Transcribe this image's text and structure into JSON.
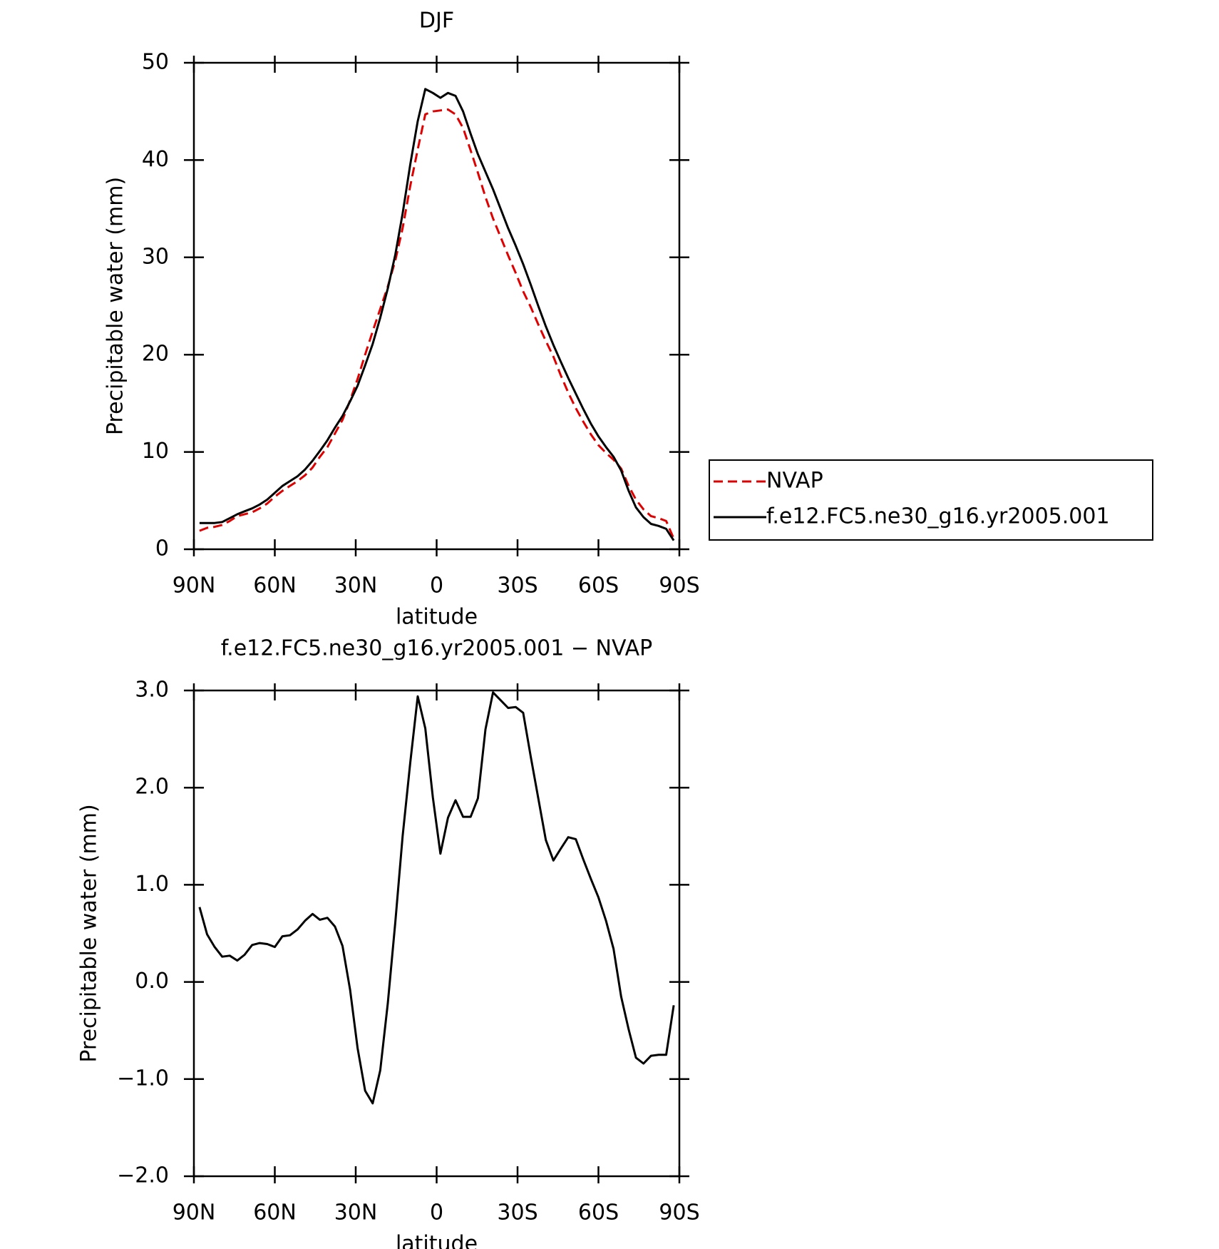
{
  "chart_data": [
    {
      "type": "line",
      "title": "DJF",
      "xlabel": "latitude",
      "ylabel": "Precipitable water (mm)",
      "x": [
        87.9,
        85.1,
        82.3,
        79.5,
        76.7,
        73.9,
        71.2,
        68.4,
        65.6,
        62.8,
        60.0,
        57.2,
        54.4,
        51.6,
        48.8,
        46.0,
        43.3,
        40.5,
        37.7,
        34.9,
        32.1,
        29.3,
        26.5,
        23.7,
        20.9,
        18.1,
        15.3,
        12.6,
        9.8,
        7.0,
        4.2,
        1.4,
        -1.4,
        -4.2,
        -7.0,
        -9.8,
        -12.6,
        -15.3,
        -18.1,
        -20.9,
        -23.7,
        -26.5,
        -29.3,
        -32.1,
        -34.9,
        -37.7,
        -40.5,
        -43.3,
        -46.0,
        -48.8,
        -51.6,
        -54.4,
        -57.2,
        -60.0,
        -62.8,
        -65.6,
        -68.4,
        -71.2,
        -73.9,
        -76.7,
        -79.5,
        -82.3,
        -85.1,
        -87.9
      ],
      "xlim": [
        90,
        -90
      ],
      "xticks": [
        {
          "value": 90,
          "label": "90N"
        },
        {
          "value": 60,
          "label": "60N"
        },
        {
          "value": 30,
          "label": "30N"
        },
        0,
        {
          "value": -30,
          "label": "30S"
        },
        {
          "value": -60,
          "label": "60S"
        },
        {
          "value": -90,
          "label": "90S"
        }
      ],
      "ylim": [
        0,
        50
      ],
      "yticks": [
        0,
        10,
        20,
        30,
        40,
        50
      ],
      "legend": "right",
      "series": [
        {
          "name": "NVAP",
          "color": "#e00000",
          "dash": true,
          "values": [
            1.9,
            2.2,
            2.3,
            2.5,
            2.9,
            3.4,
            3.6,
            3.8,
            4.2,
            4.7,
            5.4,
            6.0,
            6.5,
            7.0,
            7.6,
            8.4,
            9.5,
            10.5,
            11.9,
            13.3,
            15.3,
            17.5,
            20.0,
            22.4,
            24.7,
            27.0,
            29.7,
            33.0,
            37.3,
            41.1,
            44.7,
            45.0,
            45.1,
            45.2,
            44.7,
            43.3,
            41.0,
            38.7,
            36.2,
            34.0,
            32.1,
            30.2,
            28.4,
            26.5,
            24.9,
            23.1,
            21.4,
            19.8,
            17.9,
            16.1,
            14.5,
            13.1,
            11.8,
            10.7,
            9.9,
            9.2,
            8.3,
            6.5,
            5.1,
            4.1,
            3.4,
            3.2,
            2.9,
            1.1
          ]
        },
        {
          "name": "f.e12.FC5.ne30_g16.yr2005.001",
          "color": "#000000",
          "dash": false,
          "values": [
            2.7,
            2.7,
            2.7,
            2.8,
            3.2,
            3.6,
            3.9,
            4.2,
            4.6,
            5.1,
            5.8,
            6.5,
            7.0,
            7.5,
            8.2,
            9.1,
            10.1,
            11.2,
            12.5,
            13.7,
            15.2,
            16.8,
            18.9,
            21.1,
            23.8,
            26.8,
            30.3,
            34.5,
            39.5,
            44.0,
            47.3,
            46.9,
            46.4,
            46.9,
            46.6,
            45.0,
            42.7,
            40.6,
            38.8,
            37.0,
            35.0,
            33.0,
            31.2,
            29.3,
            27.2,
            25.0,
            22.9,
            21.0,
            19.3,
            17.6,
            16.0,
            14.4,
            12.9,
            11.6,
            10.5,
            9.5,
            8.1,
            6.0,
            4.3,
            3.3,
            2.6,
            2.4,
            2.1,
            0.9
          ]
        }
      ]
    },
    {
      "type": "line",
      "title": "f.e12.FC5.ne30_g16.yr2005.001 − NVAP",
      "xlabel": "latitude",
      "ylabel": "Precipitable water (mm)",
      "x": [
        87.9,
        85.1,
        82.3,
        79.5,
        76.7,
        73.9,
        71.2,
        68.4,
        65.6,
        62.8,
        60.0,
        57.2,
        54.4,
        51.6,
        48.8,
        46.0,
        43.3,
        40.5,
        37.7,
        34.9,
        32.1,
        29.3,
        26.5,
        23.7,
        20.9,
        18.1,
        15.3,
        12.6,
        9.8,
        7.0,
        4.2,
        1.4,
        -1.4,
        -4.2,
        -7.0,
        -9.8,
        -12.6,
        -15.3,
        -18.1,
        -20.9,
        -23.7,
        -26.5,
        -29.3,
        -32.1,
        -34.9,
        -37.7,
        -40.5,
        -43.3,
        -46.0,
        -48.8,
        -51.6,
        -54.4,
        -57.2,
        -60.0,
        -62.8,
        -65.6,
        -68.4,
        -71.2,
        -73.9,
        -76.7,
        -79.5,
        -82.3,
        -85.1,
        -87.9
      ],
      "xlim": [
        90,
        -90
      ],
      "xticks": [
        {
          "value": 90,
          "label": "90N"
        },
        {
          "value": 60,
          "label": "60N"
        },
        {
          "value": 30,
          "label": "30N"
        },
        0,
        {
          "value": -30,
          "label": "30S"
        },
        {
          "value": -60,
          "label": "60S"
        },
        {
          "value": -90,
          "label": "90S"
        }
      ],
      "ylim": [
        -2,
        3
      ],
      "yticks": [
        {
          "value": -2,
          "label": "−2.0"
        },
        {
          "value": -1,
          "label": "−1.0"
        },
        {
          "value": 0,
          "label": "0.0"
        },
        {
          "value": 1,
          "label": "1.0"
        },
        {
          "value": 2,
          "label": "2.0"
        },
        {
          "value": 3,
          "label": "3.0"
        }
      ],
      "color": "#000000",
      "values": [
        0.77,
        0.49,
        0.36,
        0.26,
        0.27,
        0.22,
        0.28,
        0.38,
        0.4,
        0.39,
        0.36,
        0.47,
        0.48,
        0.54,
        0.63,
        0.7,
        0.64,
        0.66,
        0.57,
        0.37,
        -0.08,
        -0.68,
        -1.12,
        -1.25,
        -0.91,
        -0.22,
        0.62,
        1.5,
        2.25,
        2.94,
        2.61,
        1.9,
        1.32,
        1.69,
        1.87,
        1.7,
        1.7,
        1.89,
        2.6,
        2.98,
        2.9,
        2.82,
        2.83,
        2.77,
        2.32,
        1.89,
        1.46,
        1.25,
        1.37,
        1.49,
        1.47,
        1.26,
        1.06,
        0.87,
        0.63,
        0.34,
        -0.15,
        -0.49,
        -0.78,
        -0.84,
        -0.76,
        -0.75,
        -0.75,
        -0.24
      ]
    }
  ]
}
